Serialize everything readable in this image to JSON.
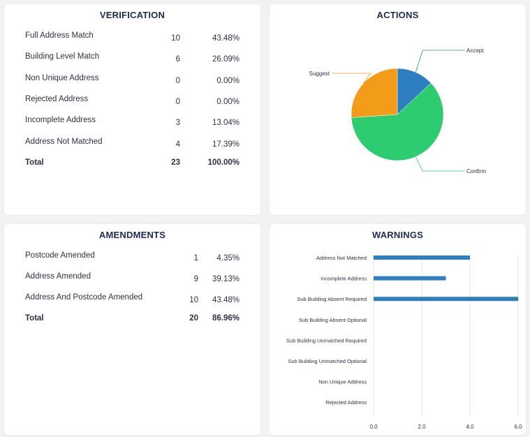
{
  "verification": {
    "title": "VERIFICATION",
    "rows": [
      {
        "label": "Full Address Match",
        "count": "10",
        "percent": "43.48%"
      },
      {
        "label": "Building Level Match",
        "count": "6",
        "percent": "26.09%"
      },
      {
        "label": "Non Unique Address",
        "count": "0",
        "percent": "0.00%"
      },
      {
        "label": "Rejected Address",
        "count": "0",
        "percent": "0.00%"
      },
      {
        "label": "Incomplete Address",
        "count": "3",
        "percent": "13.04%"
      },
      {
        "label": "Address Not Matched",
        "count": "4",
        "percent": "17.39%"
      }
    ],
    "total": {
      "label": "Total",
      "count": "23",
      "percent": "100.00%"
    }
  },
  "actions": {
    "title": "ACTIONS"
  },
  "amendments": {
    "title": "AMENDMENTS",
    "rows": [
      {
        "label": "Postcode Amended",
        "count": "1",
        "percent": "4.35%"
      },
      {
        "label": "Address Amended",
        "count": "9",
        "percent": "39.13%"
      },
      {
        "label": "Address And Postcode Amended",
        "count": "10",
        "percent": "43.48%"
      }
    ],
    "total": {
      "label": "Total",
      "count": "20",
      "percent": "86.96%"
    }
  },
  "warnings": {
    "title": "WARNINGS"
  },
  "chart_data": [
    {
      "type": "pie",
      "title": "ACTIONS",
      "slices": [
        {
          "label": "Accept",
          "value": 3,
          "color": "#2e7fbf"
        },
        {
          "label": "Confirm",
          "value": 14,
          "color": "#2ecc71"
        },
        {
          "label": "Suggest",
          "value": 6,
          "color": "#f39c1a"
        }
      ]
    },
    {
      "type": "bar",
      "orientation": "horizontal",
      "title": "WARNINGS",
      "categories": [
        "Address Not Matched",
        "Incomplete Address",
        "Sub Building Absent Required",
        "Sub Building Absent Optional",
        "Sub Building Unmatched Required",
        "Sub Building Unmatched Optional",
        "Non Unique Address",
        "Rejected Address"
      ],
      "values": [
        4,
        3,
        6,
        0,
        0,
        0,
        0,
        0
      ],
      "xlim": [
        0,
        6
      ],
      "ticks": [
        "0.0",
        "2.0",
        "4.0",
        "6.0"
      ],
      "color": "#2e7fbf",
      "grid": true
    }
  ]
}
